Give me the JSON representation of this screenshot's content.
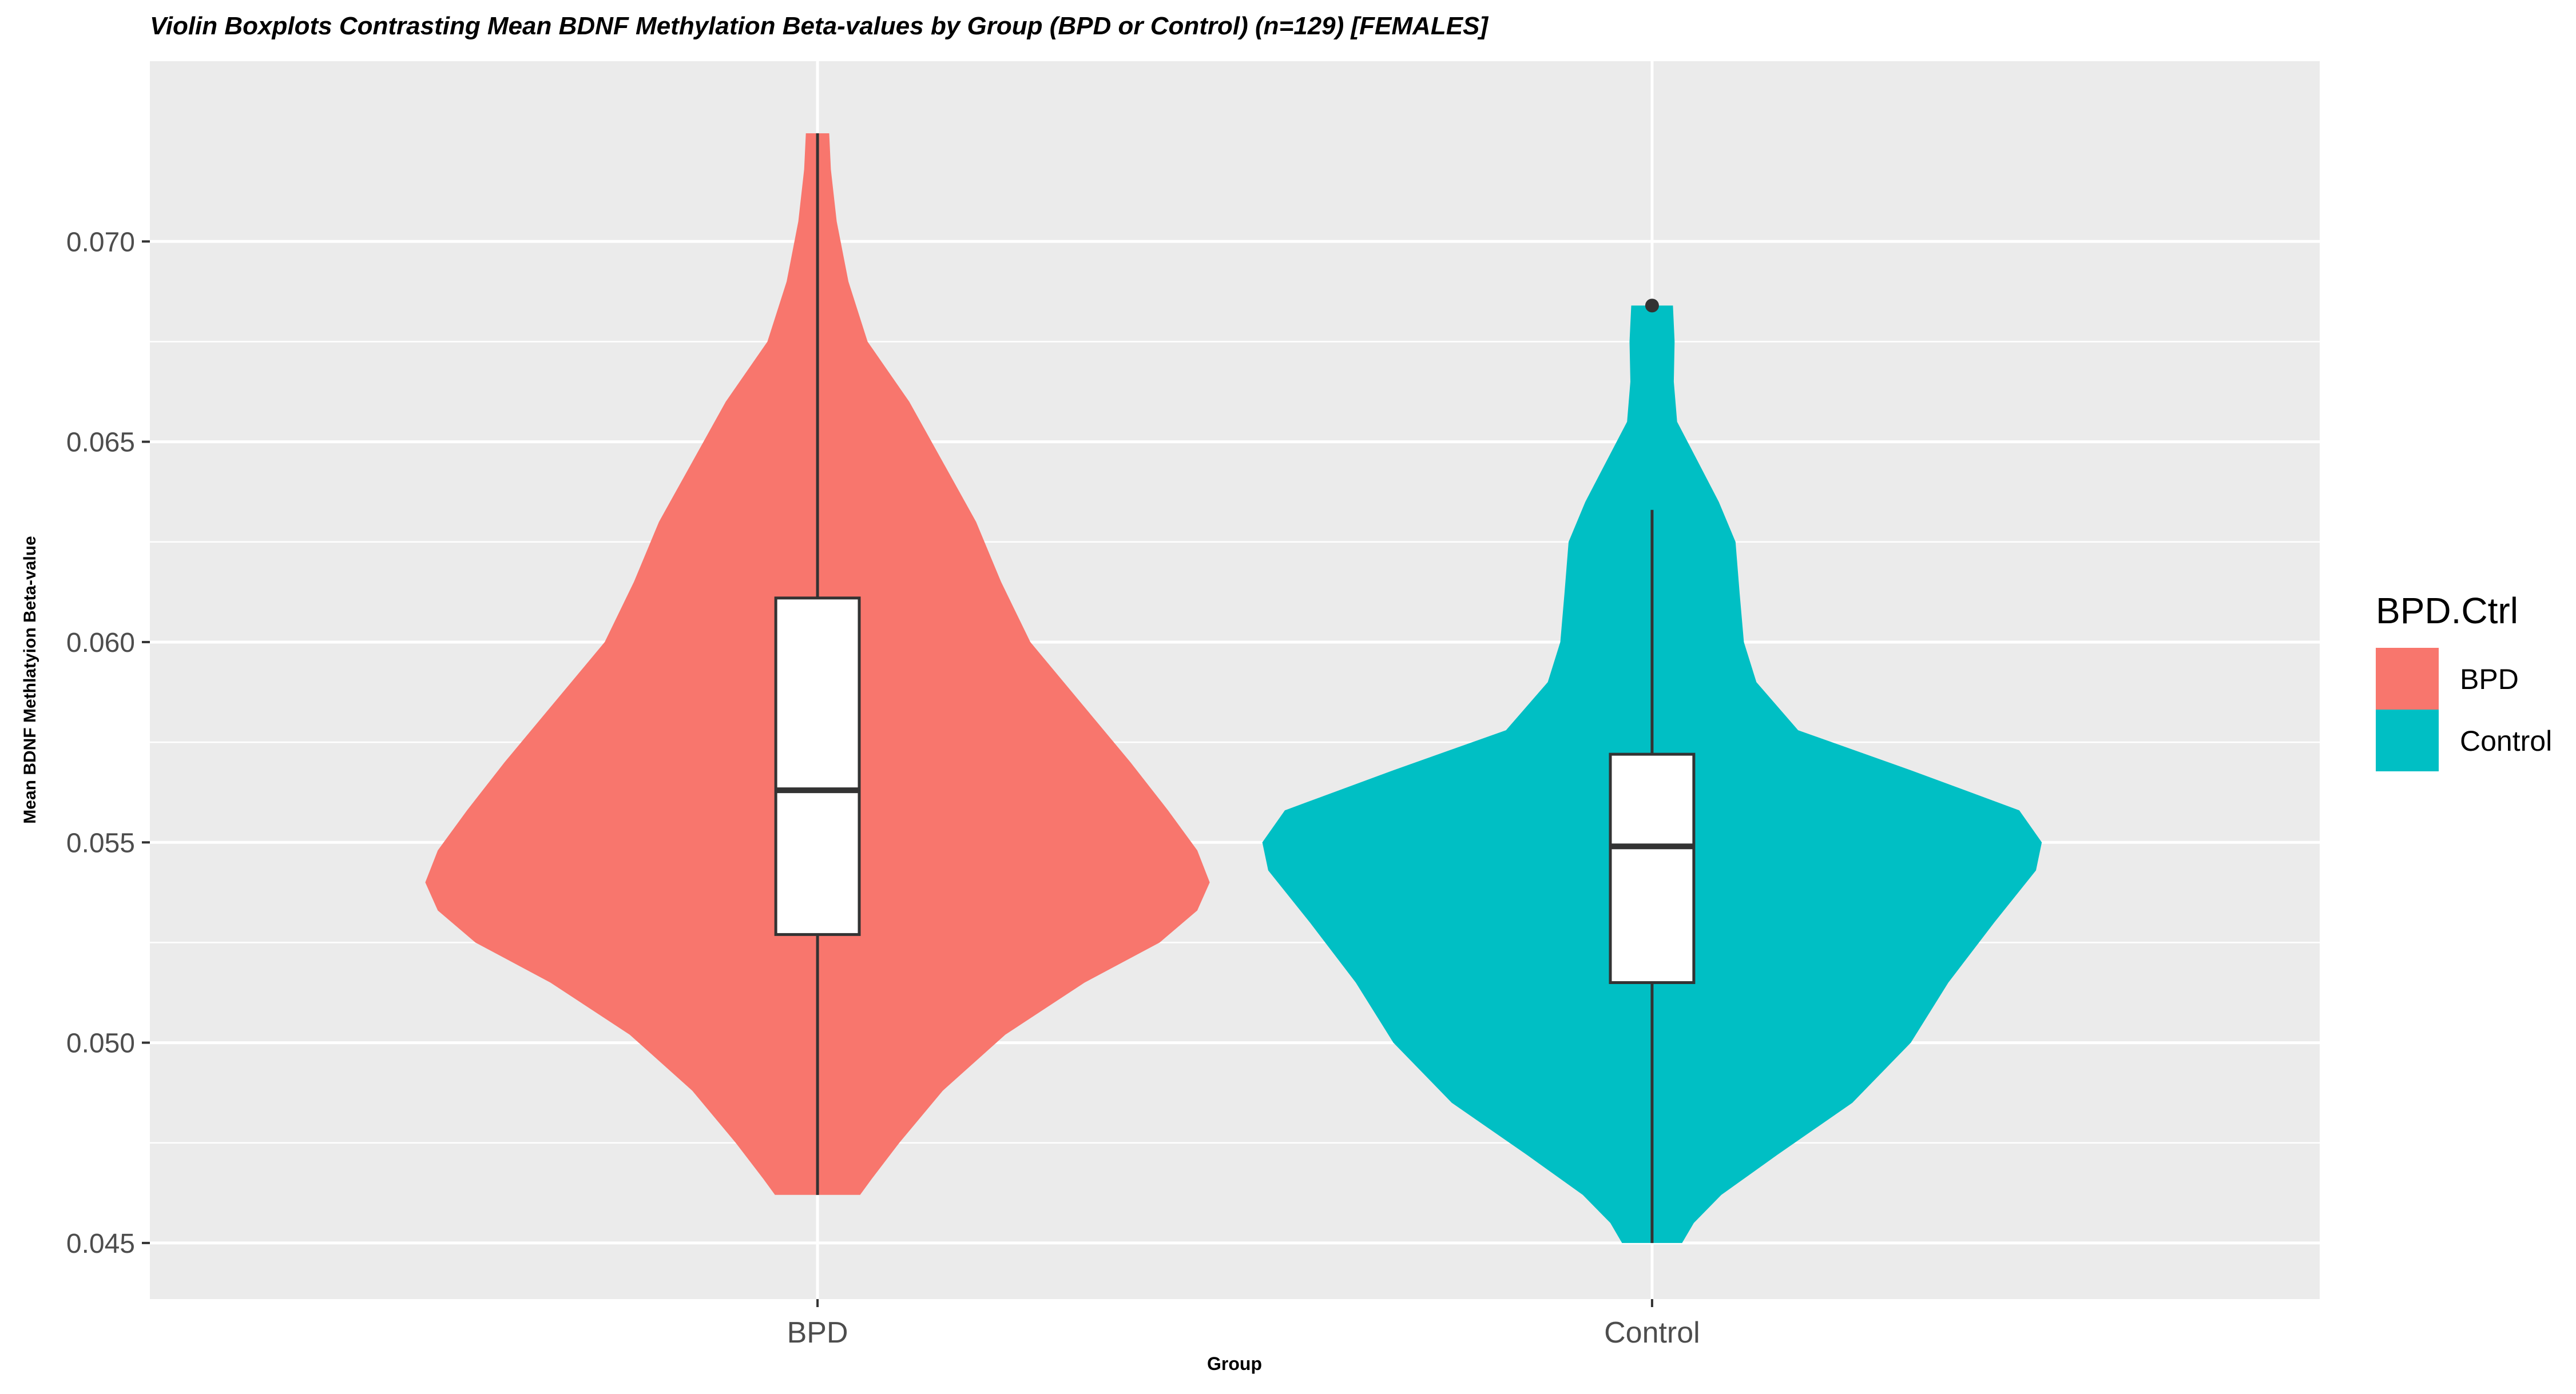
{
  "chart_data": {
    "type": "violin",
    "title": "Violin Boxplots Contrasting Mean BDNF Methylation Beta-values by Group (BPD or Control) (n=129) [FEMALES]",
    "xlabel": "Group",
    "ylabel": "Mean BDNF Methlatyion Beta-value",
    "categories": [
      "BPD",
      "Control"
    ],
    "ylim": [
      0.0436,
      0.0745
    ],
    "yticks": [
      0.045,
      0.05,
      0.055,
      0.06,
      0.065,
      0.07
    ],
    "ytick_labels": [
      "0.045",
      "0.050",
      "0.055",
      "0.060",
      "0.065",
      "0.070"
    ],
    "grid": true,
    "legend": {
      "title": "BPD.Ctrl",
      "position": "right",
      "entries": [
        {
          "label": "BPD",
          "color": "#F8766D"
        },
        {
          "label": "Control",
          "color": "#00BFC4"
        }
      ]
    },
    "series": [
      {
        "name": "BPD",
        "color": "#F8766D",
        "box": {
          "min": 0.0462,
          "q1": 0.0527,
          "median": 0.0563,
          "q3": 0.0611,
          "max": 0.0727
        },
        "outliers": [],
        "violin": [
          [
            0.0462,
            0.051
          ],
          [
            0.0466,
            0.065
          ],
          [
            0.0475,
            0.098
          ],
          [
            0.0488,
            0.15
          ],
          [
            0.0502,
            0.225
          ],
          [
            0.0515,
            0.32
          ],
          [
            0.0525,
            0.41
          ],
          [
            0.0533,
            0.455
          ],
          [
            0.054,
            0.47
          ],
          [
            0.0548,
            0.455
          ],
          [
            0.0558,
            0.42
          ],
          [
            0.057,
            0.375
          ],
          [
            0.0585,
            0.315
          ],
          [
            0.06,
            0.255
          ],
          [
            0.0615,
            0.22
          ],
          [
            0.063,
            0.19
          ],
          [
            0.0645,
            0.15
          ],
          [
            0.066,
            0.11
          ],
          [
            0.0675,
            0.06
          ],
          [
            0.069,
            0.037
          ],
          [
            0.0705,
            0.023
          ],
          [
            0.0718,
            0.016
          ],
          [
            0.0727,
            0.014
          ]
        ]
      },
      {
        "name": "Control",
        "color": "#00BFC4",
        "box": {
          "min": 0.045,
          "q1": 0.0515,
          "median": 0.0549,
          "q3": 0.0572,
          "max": 0.0633
        },
        "outliers": [
          0.0684
        ],
        "violin": [
          [
            0.045,
            0.036
          ],
          [
            0.0455,
            0.05
          ],
          [
            0.0462,
            0.083
          ],
          [
            0.0472,
            0.15
          ],
          [
            0.0485,
            0.24
          ],
          [
            0.05,
            0.31
          ],
          [
            0.0515,
            0.355
          ],
          [
            0.053,
            0.41
          ],
          [
            0.0543,
            0.46
          ],
          [
            0.055,
            0.467
          ],
          [
            0.0558,
            0.44
          ],
          [
            0.0568,
            0.31
          ],
          [
            0.0578,
            0.175
          ],
          [
            0.059,
            0.125
          ],
          [
            0.06,
            0.11
          ],
          [
            0.0612,
            0.105
          ],
          [
            0.0625,
            0.1
          ],
          [
            0.0635,
            0.08
          ],
          [
            0.0645,
            0.055
          ],
          [
            0.0655,
            0.03
          ],
          [
            0.0665,
            0.026
          ],
          [
            0.0675,
            0.027
          ],
          [
            0.0684,
            0.025
          ]
        ]
      }
    ]
  }
}
